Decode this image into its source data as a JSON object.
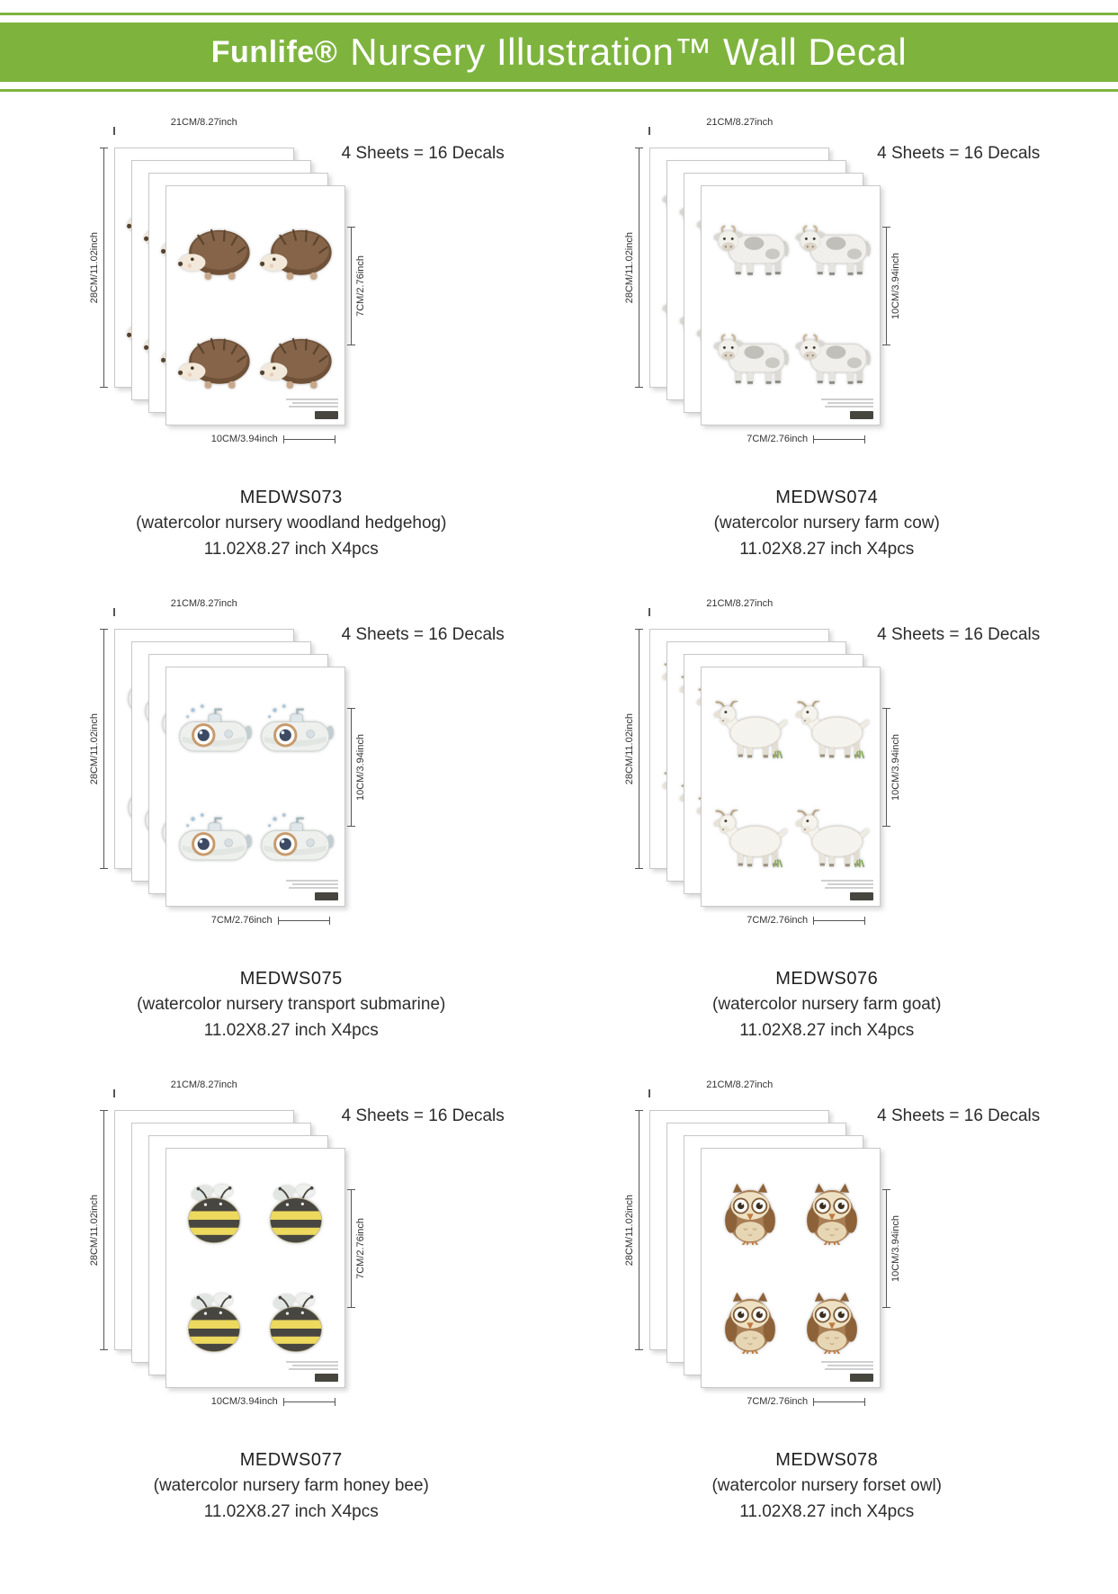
{
  "header": {
    "brand": "Funlife®",
    "title": "Nursery Illustration™ Wall Decal"
  },
  "theme": {
    "accent_green": "#7eb43e"
  },
  "products": [
    {
      "code": "MEDWS073",
      "description": "(watercolor nursery woodland hedgehog)",
      "size_line": "11.02X8.27 inch X4pcs",
      "sheets_note": "4 Sheets = 16 Decals",
      "sheet_width_label": "21CM/8.27inch",
      "sheet_height_label": "28CM/11.02inch",
      "decal_side_label": "7CM/2.76inch",
      "decal_flat_label": "10CM/3.94inch",
      "animal": "hedgehog"
    },
    {
      "code": "MEDWS074",
      "description": "(watercolor nursery farm cow)",
      "size_line": "11.02X8.27 inch X4pcs",
      "sheets_note": "4 Sheets = 16 Decals",
      "sheet_width_label": "21CM/8.27inch",
      "sheet_height_label": "28CM/11.02inch",
      "decal_side_label": "10CM/3.94inch",
      "decal_flat_label": "7CM/2.76inch",
      "animal": "cow"
    },
    {
      "code": "MEDWS075",
      "description": "(watercolor nursery transport submarine)",
      "size_line": "11.02X8.27 inch X4pcs",
      "sheets_note": "4 Sheets = 16 Decals",
      "sheet_width_label": "21CM/8.27inch",
      "sheet_height_label": "28CM/11.02inch",
      "decal_side_label": "10CM/3.94inch",
      "decal_flat_label": "7CM/2.76inch",
      "animal": "submarine"
    },
    {
      "code": "MEDWS076",
      "description": "(watercolor nursery farm goat)",
      "size_line": "11.02X8.27 inch X4pcs",
      "sheets_note": "4 Sheets = 16 Decals",
      "sheet_width_label": "21CM/8.27inch",
      "sheet_height_label": "28CM/11.02inch",
      "decal_side_label": "10CM/3.94inch",
      "decal_flat_label": "7CM/2.76inch",
      "animal": "goat"
    },
    {
      "code": "MEDWS077",
      "description": "(watercolor nursery farm honey bee)",
      "size_line": "11.02X8.27 inch X4pcs",
      "sheets_note": "4 Sheets = 16 Decals",
      "sheet_width_label": "21CM/8.27inch",
      "sheet_height_label": "28CM/11.02inch",
      "decal_side_label": "7CM/2.76inch",
      "decal_flat_label": "10CM/3.94inch",
      "animal": "bee"
    },
    {
      "code": "MEDWS078",
      "description": "(watercolor nursery forset owl)",
      "size_line": "11.02X8.27 inch X4pcs",
      "sheets_note": "4 Sheets = 16 Decals",
      "sheet_width_label": "21CM/8.27inch",
      "sheet_height_label": "28CM/11.02inch",
      "decal_side_label": "10CM/3.94inch",
      "decal_flat_label": "7CM/2.76inch",
      "animal": "owl"
    }
  ]
}
